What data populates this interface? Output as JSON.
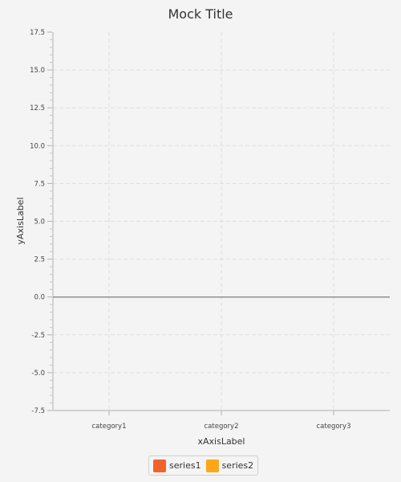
{
  "chart_data": {
    "type": "bar",
    "title": "Mock Title",
    "xlabel": "xAxisLabel",
    "ylabel": "yAxisLabel",
    "categories": [
      "category1",
      "category2",
      "category3"
    ],
    "series": [
      {
        "name": "series1",
        "color": "#f3622d",
        "values": [
          0,
          0,
          0
        ]
      },
      {
        "name": "series2",
        "color": "#fba71b",
        "values": [
          0,
          0,
          0
        ]
      }
    ],
    "ylim": [
      -7.5,
      17.5
    ],
    "ytick_step": 2.5,
    "ytick_labels": [
      "-7.5",
      "-5.0",
      "-2.5",
      "0.0",
      "2.5",
      "5.0",
      "7.5",
      "10.0",
      "12.5",
      "15.0",
      "17.5"
    ],
    "grid": true,
    "legend_position": "bottom"
  }
}
